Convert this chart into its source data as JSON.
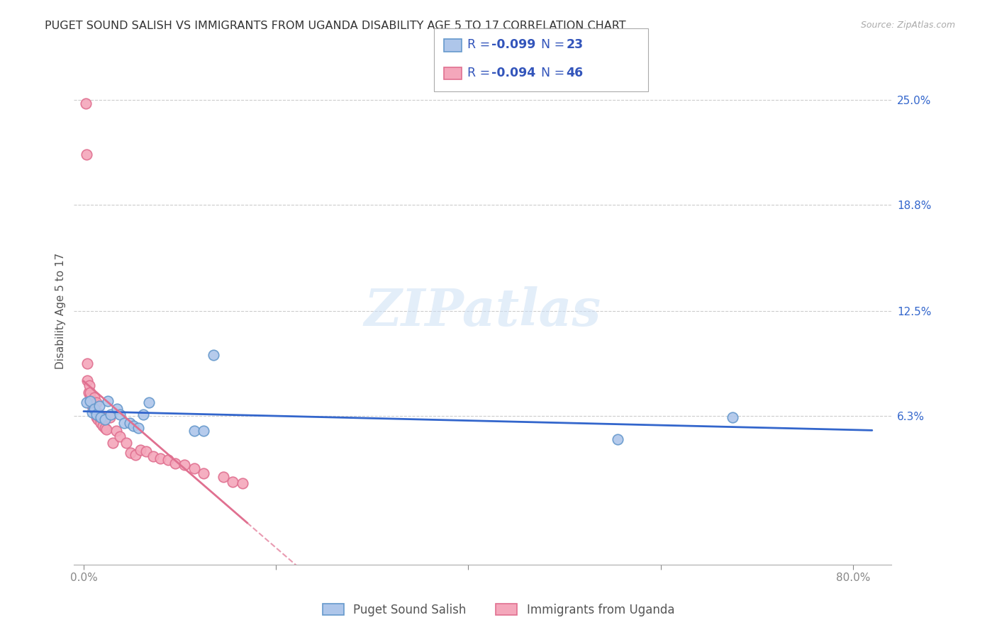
{
  "title": "PUGET SOUND SALISH VS IMMIGRANTS FROM UGANDA DISABILITY AGE 5 TO 17 CORRELATION CHART",
  "source": "Source: ZipAtlas.com",
  "ylabel": "Disability Age 5 to 17",
  "ytick_labels": [
    "6.3%",
    "12.5%",
    "18.8%",
    "25.0%"
  ],
  "ytick_values": [
    0.063,
    0.125,
    0.188,
    0.25
  ],
  "xtick_values": [
    0.0,
    0.2,
    0.4,
    0.6,
    0.8
  ],
  "xtick_labels": [
    "0.0%",
    "",
    "",
    "",
    "80.0%"
  ],
  "xlim": [
    -0.01,
    0.84
  ],
  "ylim": [
    -0.025,
    0.275
  ],
  "blue_label": "Puget Sound Salish",
  "pink_label": "Immigrants from Uganda",
  "blue_R": -0.099,
  "blue_N": 23,
  "pink_R": -0.094,
  "pink_N": 46,
  "blue_color": "#aec6ea",
  "pink_color": "#f4a7bb",
  "blue_edge_color": "#6699cc",
  "pink_edge_color": "#e07090",
  "blue_line_color": "#3366cc",
  "pink_line_color": "#e07090",
  "legend_text_color": "#3355bb",
  "watermark": "ZIPatlas",
  "blue_x": [
    0.003,
    0.007,
    0.009,
    0.011,
    0.013,
    0.016,
    0.018,
    0.022,
    0.025,
    0.028,
    0.035,
    0.038,
    0.042,
    0.048,
    0.052,
    0.057,
    0.062,
    0.068,
    0.115,
    0.125,
    0.135,
    0.555,
    0.675
  ],
  "blue_y": [
    0.071,
    0.072,
    0.065,
    0.067,
    0.064,
    0.069,
    0.062,
    0.061,
    0.072,
    0.064,
    0.067,
    0.064,
    0.059,
    0.059,
    0.057,
    0.056,
    0.064,
    0.071,
    0.054,
    0.054,
    0.099,
    0.049,
    0.062
  ],
  "pink_x": [
    0.002,
    0.003,
    0.004,
    0.004,
    0.005,
    0.006,
    0.007,
    0.007,
    0.008,
    0.009,
    0.009,
    0.01,
    0.01,
    0.011,
    0.012,
    0.013,
    0.013,
    0.014,
    0.015,
    0.016,
    0.016,
    0.017,
    0.018,
    0.019,
    0.02,
    0.022,
    0.024,
    0.027,
    0.03,
    0.034,
    0.038,
    0.044,
    0.049,
    0.054,
    0.059,
    0.065,
    0.072,
    0.08,
    0.088,
    0.095,
    0.105,
    0.115,
    0.125,
    0.145,
    0.155,
    0.165
  ],
  "pink_y": [
    0.248,
    0.218,
    0.084,
    0.094,
    0.077,
    0.081,
    0.074,
    0.077,
    0.072,
    0.071,
    0.069,
    0.069,
    0.067,
    0.074,
    0.07,
    0.071,
    0.062,
    0.065,
    0.061,
    0.064,
    0.062,
    0.063,
    0.059,
    0.062,
    0.057,
    0.056,
    0.055,
    0.062,
    0.047,
    0.054,
    0.051,
    0.047,
    0.041,
    0.04,
    0.043,
    0.042,
    0.039,
    0.038,
    0.037,
    0.035,
    0.034,
    0.032,
    0.029,
    0.027,
    0.024,
    0.023
  ],
  "grid_color": "#cccccc",
  "background_color": "#ffffff",
  "title_fontsize": 11.5,
  "label_fontsize": 11,
  "tick_fontsize": 11,
  "legend_fontsize": 12.5
}
